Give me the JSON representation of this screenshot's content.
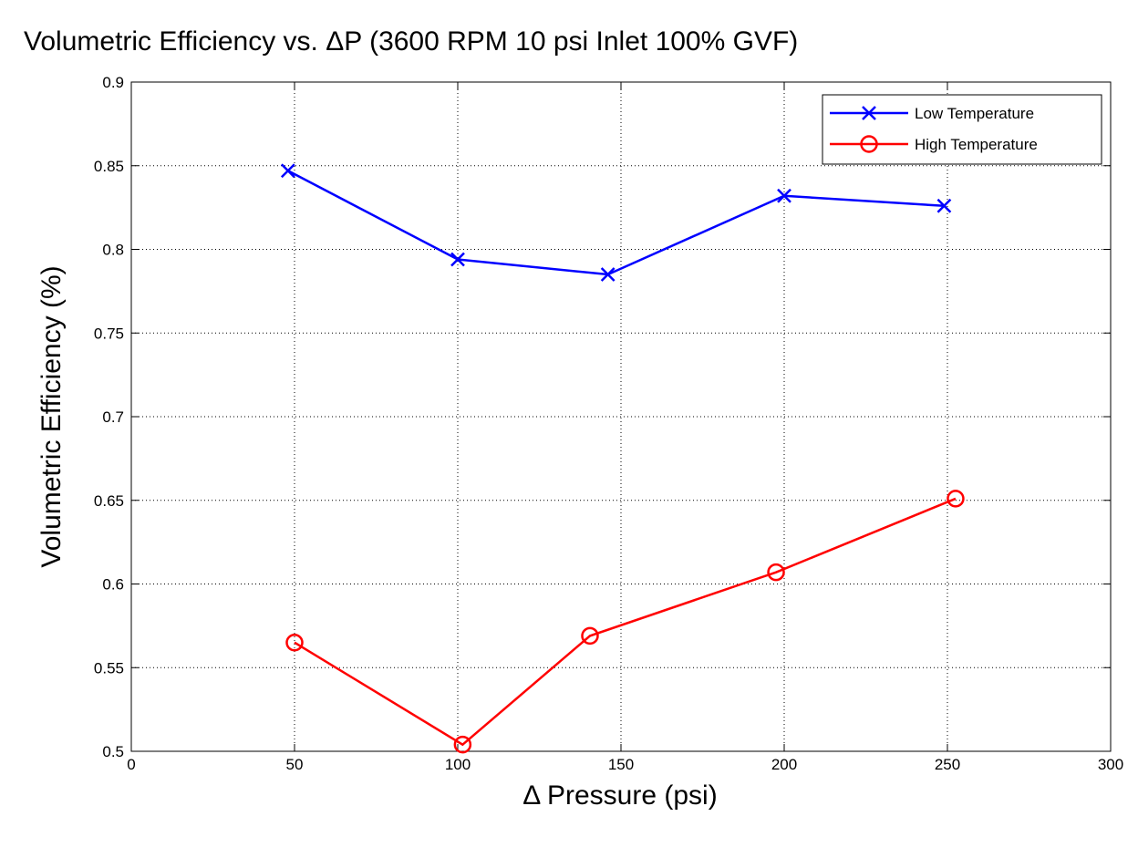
{
  "chart_data": {
    "type": "line",
    "title": "Volumetric Efficiency vs. ΔP (3600 RPM 10 psi Inlet 100% GVF)",
    "xlabel": "Δ Pressure (psi)",
    "ylabel": "Volumetric Efficiency (%)",
    "xlim": [
      0,
      300
    ],
    "ylim": [
      0.5,
      0.9
    ],
    "xticks": [
      "0",
      "50",
      "100",
      "150",
      "200",
      "250",
      "300"
    ],
    "yticks": [
      "0.5",
      "0.55",
      "0.6",
      "0.65",
      "0.7",
      "0.75",
      "0.8",
      "0.85",
      "0.9"
    ],
    "grid": true,
    "legend_position": "top-right",
    "series": [
      {
        "name": "Low Temperature",
        "color": "#0000ff",
        "marker": "x",
        "x": [
          48,
          100,
          146,
          200,
          249
        ],
        "y": [
          0.847,
          0.794,
          0.785,
          0.832,
          0.826
        ]
      },
      {
        "name": "High Temperature",
        "color": "#ff0000",
        "marker": "o",
        "x": [
          50,
          101.5,
          140.5,
          197.5,
          252.5
        ],
        "y": [
          0.565,
          0.504,
          0.569,
          0.607,
          0.651
        ]
      }
    ]
  }
}
